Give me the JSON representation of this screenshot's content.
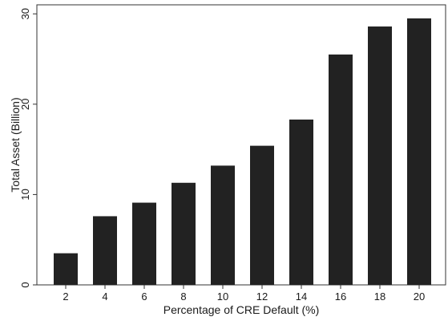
{
  "chart_data": {
    "type": "bar",
    "categories": [
      "2",
      "4",
      "6",
      "8",
      "10",
      "12",
      "14",
      "16",
      "18",
      "20"
    ],
    "values": [
      3.5,
      7.6,
      9.1,
      11.3,
      13.2,
      15.4,
      18.3,
      25.5,
      28.6,
      29.5
    ],
    "title": "",
    "xlabel": "Percentage of CRE Default (%)",
    "ylabel": "Total Asset (Billion)",
    "ylim": [
      0,
      31
    ],
    "yticks": [
      "0",
      "10",
      "20",
      "30"
    ],
    "ytick_values": [
      0,
      10,
      20,
      30
    ],
    "grid": false,
    "legend": "none",
    "bar_color": "#222222",
    "axis_color": "#333333"
  }
}
